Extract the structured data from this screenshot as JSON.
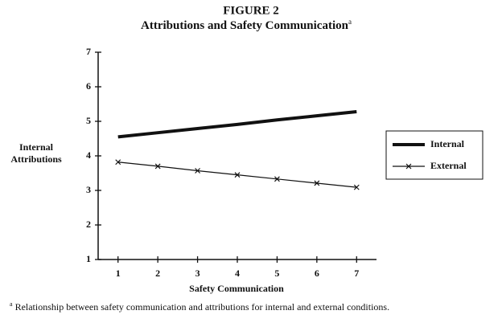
{
  "chart_data": {
    "type": "line",
    "title": "FIGURE 2",
    "subtitle": "Attributions and Safety Communication",
    "subtitle_marker": "a",
    "xlabel": "Safety Communication",
    "ylabel": "Internal Attributions",
    "x": [
      1,
      2,
      3,
      4,
      5,
      6,
      7
    ],
    "xlim": [
      0.5,
      7.5
    ],
    "xticks": [
      1,
      2,
      3,
      4,
      5,
      6,
      7
    ],
    "ylim": [
      1,
      7
    ],
    "yticks": [
      1,
      2,
      3,
      4,
      5,
      6,
      7
    ],
    "grid": false,
    "legend": "right",
    "series": [
      {
        "name": "Internal",
        "color": "#111111",
        "width": 4,
        "marker": null,
        "values": [
          4.55,
          4.67,
          4.79,
          4.91,
          5.04,
          5.16,
          5.28
        ]
      },
      {
        "name": "External",
        "color": "#111111",
        "width": 1.2,
        "marker": "x",
        "values": [
          3.82,
          3.7,
          3.57,
          3.45,
          3.33,
          3.21,
          3.09
        ]
      }
    ],
    "note_marker": "a",
    "note": "Relationship between safety communication and attributions for internal and external conditions."
  }
}
